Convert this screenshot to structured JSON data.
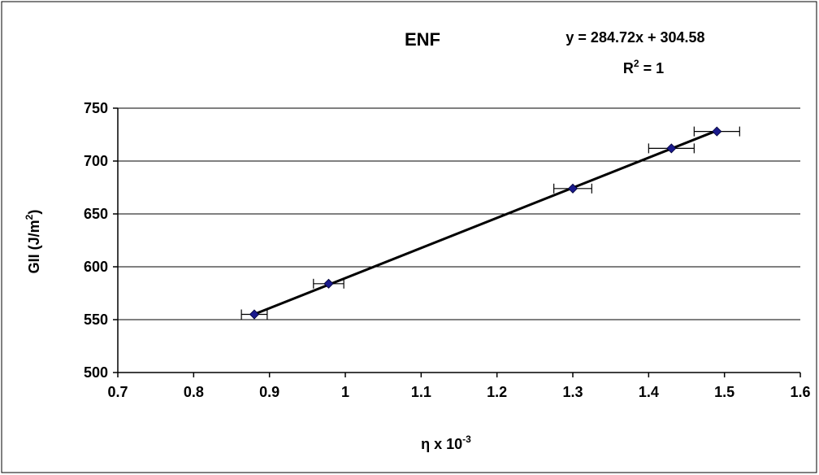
{
  "chart_data": {
    "type": "scatter",
    "title": "ENF",
    "equation": "y = 284.72x + 304.58",
    "r2_base": "R",
    "r2_sup": "2",
    "r2_value": " = 1",
    "xlabel_base": "η x 10",
    "xlabel_sup": "-3",
    "ylabel_base": "GII (J/m",
    "ylabel_sup": "2",
    "ylabel_end": ")",
    "xlim": [
      0.7,
      1.6
    ],
    "ylim": [
      500,
      750
    ],
    "xticks": [
      0.7,
      0.8,
      0.9,
      1,
      1.1,
      1.2,
      1.3,
      1.4,
      1.5,
      1.6
    ],
    "xtick_labels": [
      "0.7",
      "0.8",
      "0.9",
      "1",
      "1.1",
      "1.2",
      "1.3",
      "1.4",
      "1.5",
      "1.6"
    ],
    "yticks": [
      500,
      550,
      600,
      650,
      700,
      750
    ],
    "ytick_labels": [
      "500",
      "550",
      "600",
      "650",
      "700",
      "750"
    ],
    "grid": "horizontal",
    "series": [
      {
        "x": [
          0.88,
          0.978,
          1.3,
          1.43,
          1.49
        ],
        "y": [
          555,
          584,
          674,
          712,
          728
        ],
        "x_error": [
          0.017,
          0.02,
          0.025,
          0.03,
          0.03
        ],
        "marker_color": "#1a1a8c"
      }
    ],
    "trendline": {
      "slope": 284.72,
      "intercept": 304.58,
      "x_range": [
        0.88,
        1.49
      ],
      "color": "#000000"
    }
  }
}
